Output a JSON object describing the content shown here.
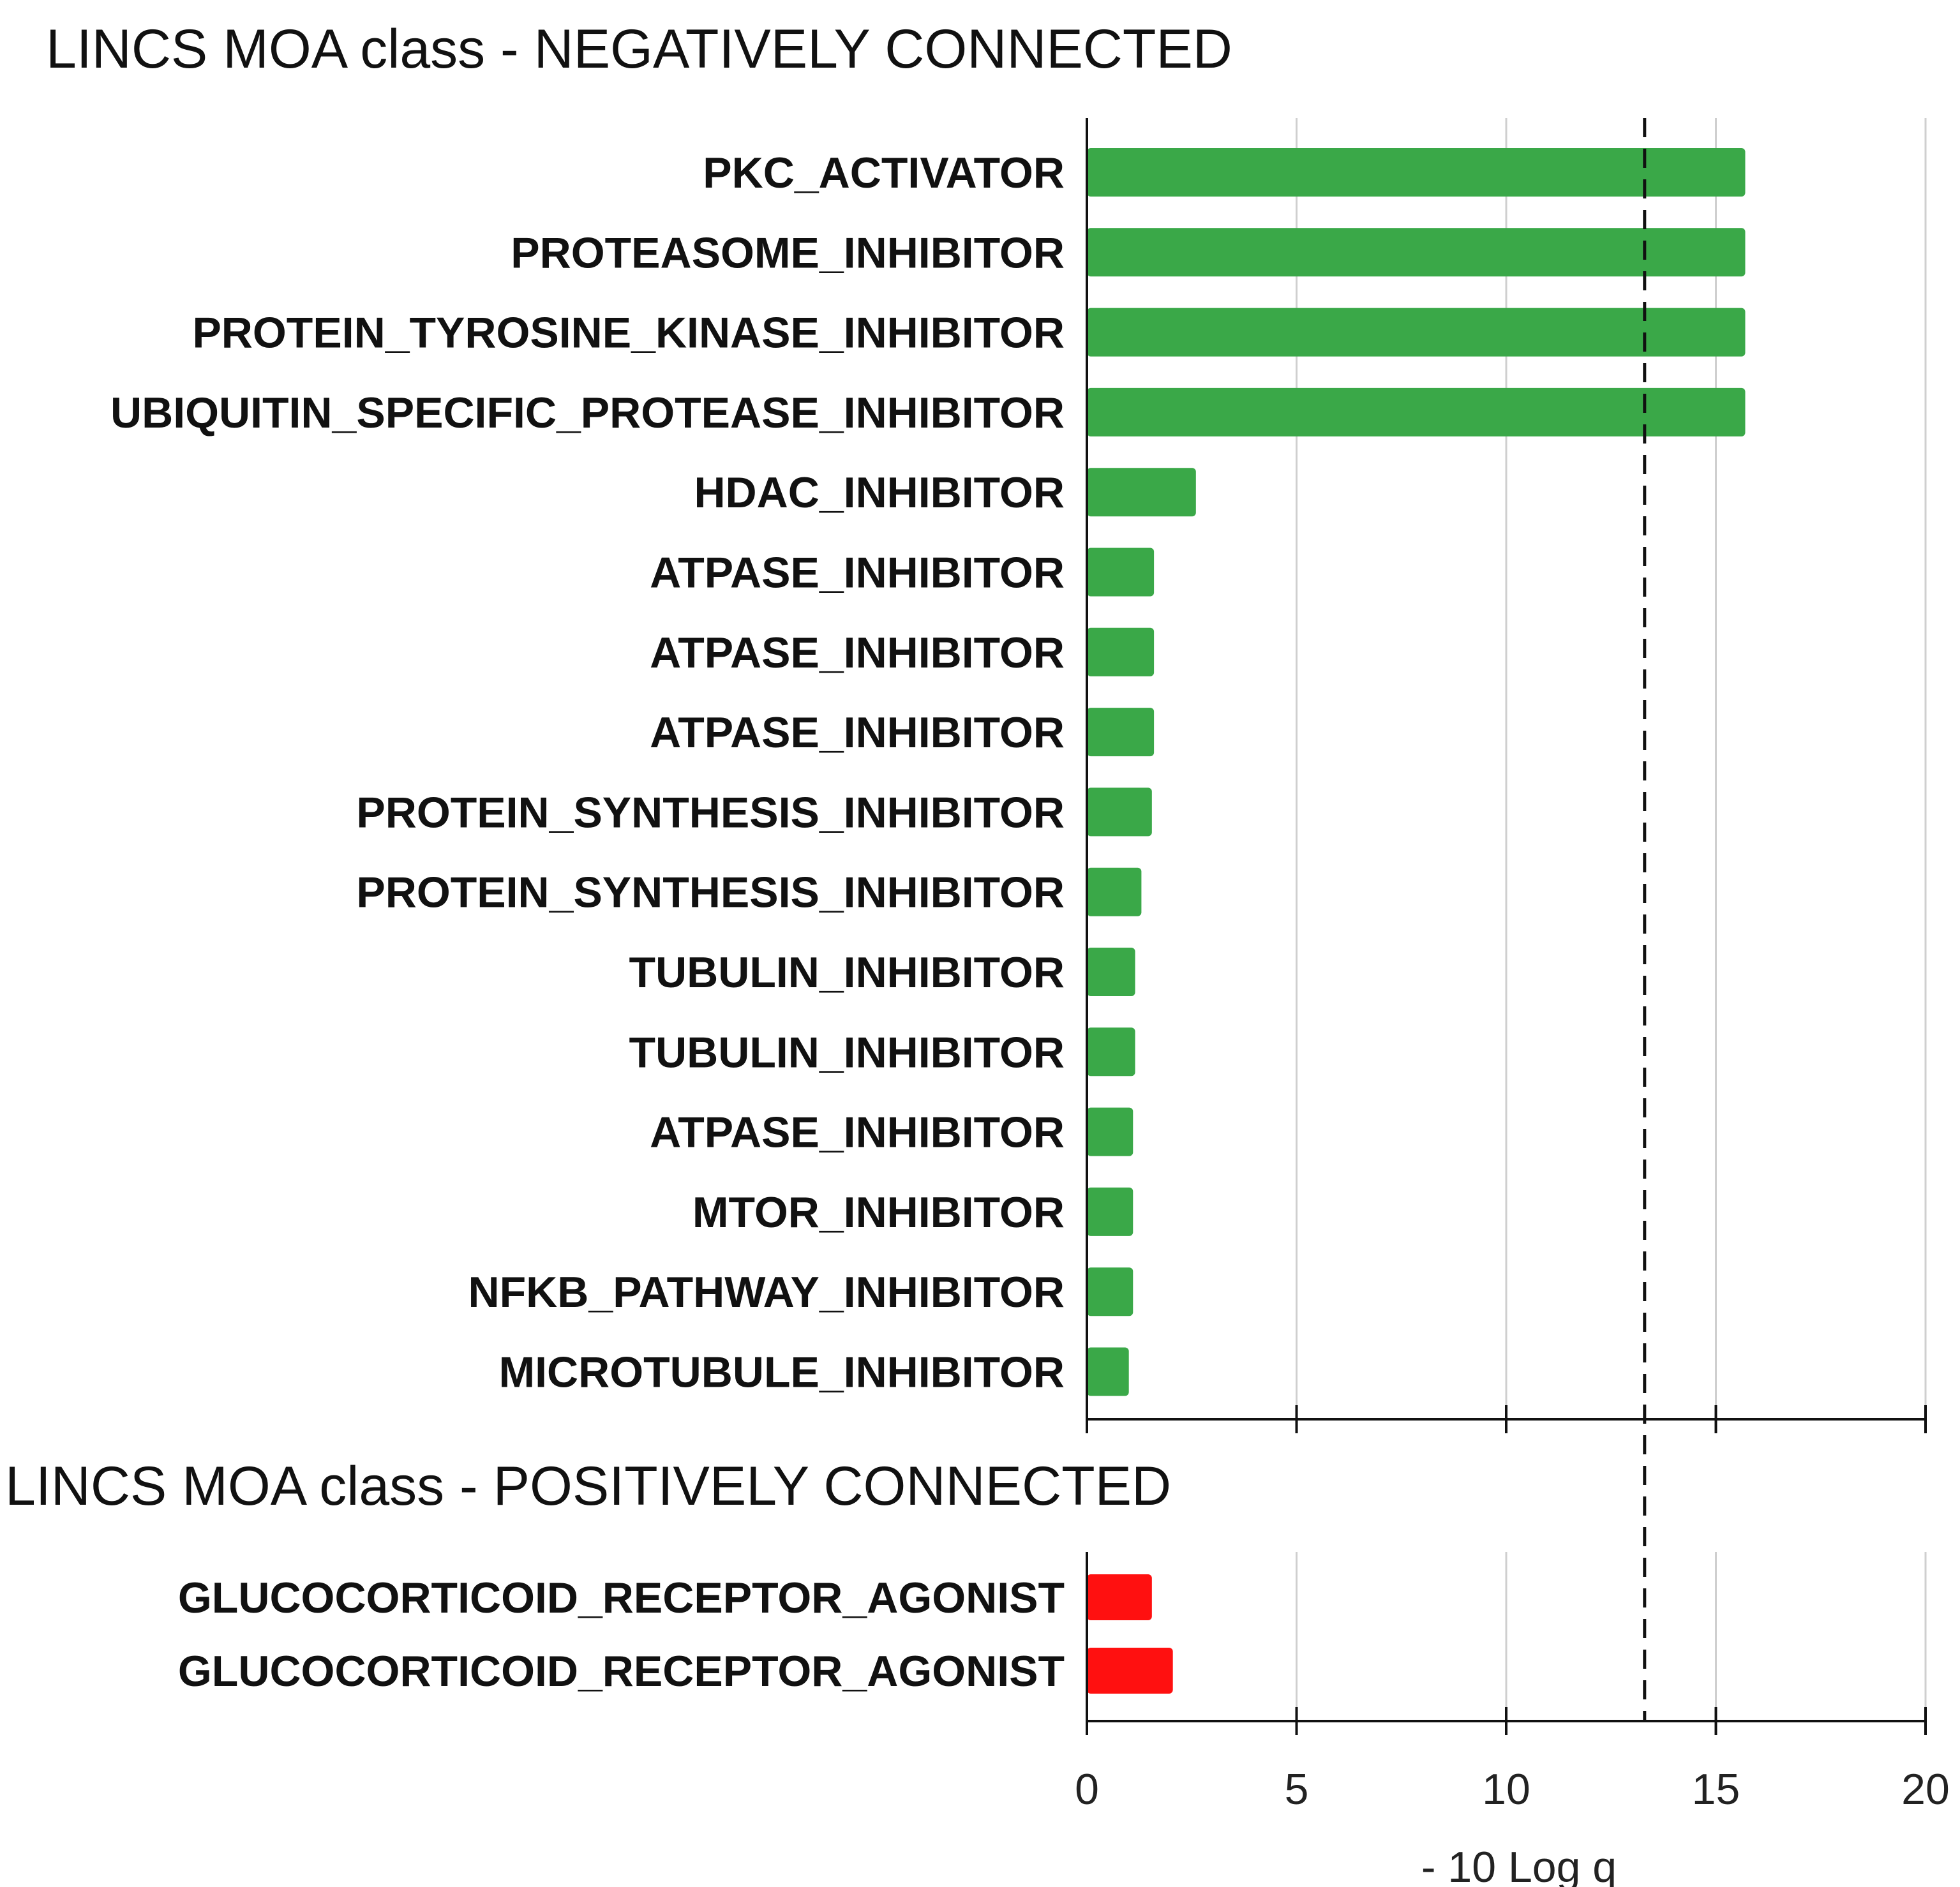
{
  "chart_data": [
    {
      "type": "bar",
      "orientation": "horizontal",
      "title": "LINCS MOA class - NEGATIVELY CONNECTED",
      "categories": [
        "PKC_ACTIVATOR",
        "PROTEASOME_INHIBITOR",
        "PROTEIN_TYROSINE_KINASE_INHIBITOR",
        "UBIQUITIN_SPECIFIC_PROTEASE_INHIBITOR",
        "HDAC_INHIBITOR",
        "ATPASE_INHIBITOR",
        "ATPASE_INHIBITOR",
        "ATPASE_INHIBITOR",
        "PROTEIN_SYNTHESIS_INHIBITOR",
        "PROTEIN_SYNTHESIS_INHIBITOR",
        "TUBULIN_INHIBITOR",
        "TUBULIN_INHIBITOR",
        "ATPASE_INHIBITOR",
        "MTOR_INHIBITOR",
        "NFKB_PATHWAY_INHIBITOR",
        "MICROTUBULE_INHIBITOR"
      ],
      "values": [
        15.7,
        15.7,
        15.7,
        15.7,
        2.6,
        1.6,
        1.6,
        1.6,
        1.55,
        1.3,
        1.15,
        1.15,
        1.1,
        1.1,
        1.1,
        1.0
      ],
      "color": "#3aa848",
      "xlim": [
        0,
        20
      ],
      "threshold": 13.3,
      "grid": true
    },
    {
      "type": "bar",
      "orientation": "horizontal",
      "title": "LINCS MOA class - POSITIVELY CONNECTED",
      "categories": [
        "GLUCOCORTICOID_RECEPTOR_AGONIST",
        "GLUCOCORTICOID_RECEPTOR_AGONIST"
      ],
      "values": [
        1.55,
        2.05
      ],
      "color": "#ff1010",
      "xlim": [
        0,
        20
      ],
      "threshold": 13.3,
      "grid": true,
      "xticks": [
        "0",
        "5",
        "10",
        "15",
        "20"
      ],
      "xlabel": "- 10 Log q"
    }
  ]
}
